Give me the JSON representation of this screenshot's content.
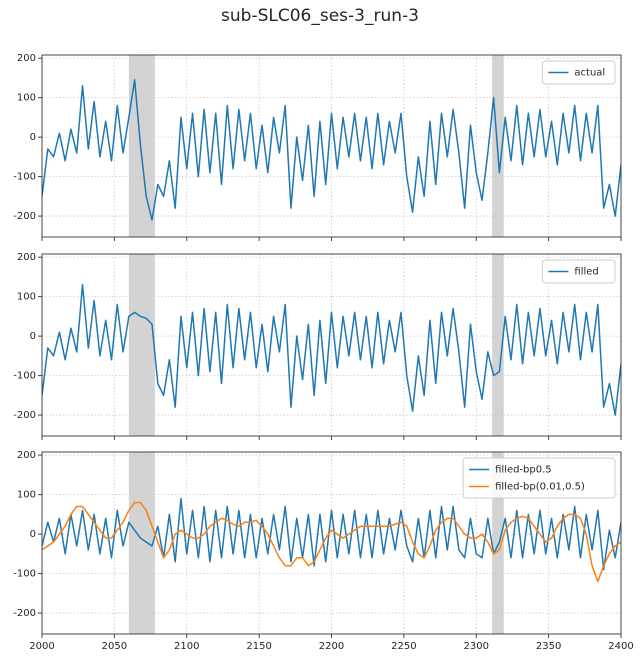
{
  "title": "sub-SLC06_ses-3_run-3",
  "chart_data": [
    {
      "type": "line",
      "x": [
        2000,
        2004,
        2008,
        2012,
        2016,
        2020,
        2024,
        2028,
        2032,
        2036,
        2040,
        2044,
        2048,
        2052,
        2056,
        2060,
        2064,
        2068,
        2072,
        2076,
        2080,
        2084,
        2088,
        2092,
        2096,
        2100,
        2104,
        2108,
        2112,
        2116,
        2120,
        2124,
        2128,
        2132,
        2136,
        2140,
        2144,
        2148,
        2152,
        2156,
        2160,
        2164,
        2168,
        2172,
        2176,
        2180,
        2184,
        2188,
        2192,
        2196,
        2200,
        2204,
        2208,
        2212,
        2216,
        2220,
        2224,
        2228,
        2232,
        2236,
        2240,
        2244,
        2248,
        2252,
        2256,
        2260,
        2264,
        2268,
        2272,
        2276,
        2280,
        2284,
        2288,
        2292,
        2296,
        2300,
        2304,
        2308,
        2312,
        2316,
        2320,
        2324,
        2328,
        2332,
        2336,
        2340,
        2344,
        2348,
        2352,
        2356,
        2360,
        2364,
        2368,
        2372,
        2376,
        2380,
        2384,
        2388,
        2392,
        2396,
        2400
      ],
      "series": [
        {
          "name": "actual",
          "color": "#1f77b4",
          "values": [
            -150,
            -30,
            -50,
            10,
            -60,
            20,
            -40,
            130,
            -30,
            90,
            -50,
            40,
            -60,
            80,
            -40,
            50,
            145,
            -20,
            -150,
            -210,
            -120,
            -150,
            -60,
            -180,
            50,
            -80,
            60,
            -100,
            70,
            -90,
            60,
            -120,
            80,
            -80,
            70,
            -60,
            60,
            -80,
            30,
            -90,
            50,
            -40,
            80,
            -180,
            0,
            -110,
            30,
            -150,
            40,
            -120,
            60,
            -80,
            50,
            -50,
            60,
            -60,
            50,
            -80,
            60,
            -70,
            40,
            -40,
            60,
            -100,
            -190,
            -50,
            -150,
            40,
            -120,
            60,
            -50,
            70,
            -40,
            -180,
            30,
            -90,
            -160,
            -40,
            100,
            -90,
            50,
            -60,
            80,
            -70,
            60,
            -50,
            70,
            -50,
            40,
            -70,
            60,
            -40,
            80,
            -60,
            60,
            -40,
            80,
            -180,
            -120,
            -200,
            -70
          ]
        }
      ],
      "shaded": [
        [
          2060,
          2078
        ],
        [
          2311,
          2319
        ]
      ],
      "shade_color": "#d3d3d3",
      "xlim": [
        2000,
        2400
      ],
      "xticks": [
        2000,
        2050,
        2100,
        2150,
        2200,
        2250,
        2300,
        2350,
        2400
      ],
      "ylim": [
        -253,
        208
      ],
      "yticks": [
        -200,
        -100,
        0,
        100,
        200
      ],
      "grid": true,
      "legend": "upper right"
    },
    {
      "type": "line",
      "x": [
        2000,
        2004,
        2008,
        2012,
        2016,
        2020,
        2024,
        2028,
        2032,
        2036,
        2040,
        2044,
        2048,
        2052,
        2056,
        2060,
        2064,
        2068,
        2072,
        2076,
        2080,
        2084,
        2088,
        2092,
        2096,
        2100,
        2104,
        2108,
        2112,
        2116,
        2120,
        2124,
        2128,
        2132,
        2136,
        2140,
        2144,
        2148,
        2152,
        2156,
        2160,
        2164,
        2168,
        2172,
        2176,
        2180,
        2184,
        2188,
        2192,
        2196,
        2200,
        2204,
        2208,
        2212,
        2216,
        2220,
        2224,
        2228,
        2232,
        2236,
        2240,
        2244,
        2248,
        2252,
        2256,
        2260,
        2264,
        2268,
        2272,
        2276,
        2280,
        2284,
        2288,
        2292,
        2296,
        2300,
        2304,
        2308,
        2312,
        2316,
        2320,
        2324,
        2328,
        2332,
        2336,
        2340,
        2344,
        2348,
        2352,
        2356,
        2360,
        2364,
        2368,
        2372,
        2376,
        2380,
        2384,
        2388,
        2392,
        2396,
        2400
      ],
      "series": [
        {
          "name": "filled",
          "color": "#1f77b4",
          "values": [
            -150,
            -30,
            -50,
            10,
            -60,
            20,
            -40,
            130,
            -30,
            90,
            -50,
            40,
            -60,
            80,
            -40,
            50,
            60,
            50,
            45,
            30,
            -120,
            -150,
            -60,
            -180,
            50,
            -80,
            60,
            -100,
            70,
            -90,
            60,
            -120,
            80,
            -80,
            70,
            -60,
            60,
            -80,
            30,
            -90,
            50,
            -40,
            80,
            -180,
            0,
            -110,
            30,
            -150,
            40,
            -120,
            60,
            -80,
            50,
            -50,
            60,
            -60,
            50,
            -80,
            60,
            -70,
            40,
            -40,
            60,
            -100,
            -190,
            -50,
            -150,
            40,
            -120,
            60,
            -50,
            70,
            -40,
            -180,
            30,
            -90,
            -160,
            -40,
            -100,
            -90,
            50,
            -60,
            80,
            -70,
            60,
            -50,
            70,
            -50,
            40,
            -70,
            60,
            -40,
            80,
            -60,
            60,
            -40,
            80,
            -180,
            -120,
            -200,
            -70
          ]
        }
      ],
      "shaded": [
        [
          2060,
          2078
        ],
        [
          2311,
          2319
        ]
      ],
      "shade_color": "#d3d3d3",
      "xlim": [
        2000,
        2400
      ],
      "xticks": [
        2000,
        2050,
        2100,
        2150,
        2200,
        2250,
        2300,
        2350,
        2400
      ],
      "ylim": [
        -253,
        208
      ],
      "yticks": [
        -200,
        -100,
        0,
        100,
        200
      ],
      "grid": true,
      "legend": "upper right"
    },
    {
      "type": "line",
      "x": [
        2000,
        2004,
        2008,
        2012,
        2016,
        2020,
        2024,
        2028,
        2032,
        2036,
        2040,
        2044,
        2048,
        2052,
        2056,
        2060,
        2064,
        2068,
        2072,
        2076,
        2080,
        2084,
        2088,
        2092,
        2096,
        2100,
        2104,
        2108,
        2112,
        2116,
        2120,
        2124,
        2128,
        2132,
        2136,
        2140,
        2144,
        2148,
        2152,
        2156,
        2160,
        2164,
        2168,
        2172,
        2176,
        2180,
        2184,
        2188,
        2192,
        2196,
        2200,
        2204,
        2208,
        2212,
        2216,
        2220,
        2224,
        2228,
        2232,
        2236,
        2240,
        2244,
        2248,
        2252,
        2256,
        2260,
        2264,
        2268,
        2272,
        2276,
        2280,
        2284,
        2288,
        2292,
        2296,
        2300,
        2304,
        2308,
        2312,
        2316,
        2320,
        2324,
        2328,
        2332,
        2336,
        2340,
        2344,
        2348,
        2352,
        2356,
        2360,
        2364,
        2368,
        2372,
        2376,
        2380,
        2384,
        2388,
        2392,
        2396,
        2400
      ],
      "series": [
        {
          "name": "filled-bp0.5",
          "color": "#1f77b4",
          "values": [
            -30,
            30,
            -20,
            40,
            -50,
            50,
            -30,
            60,
            -40,
            50,
            -50,
            40,
            -60,
            60,
            -30,
            30,
            10,
            -10,
            -20,
            -30,
            20,
            -60,
            50,
            -70,
            90,
            -50,
            60,
            -60,
            70,
            -70,
            60,
            -60,
            70,
            -50,
            60,
            -60,
            50,
            -60,
            40,
            -50,
            50,
            -40,
            70,
            -70,
            40,
            -60,
            50,
            -80,
            50,
            -70,
            60,
            -60,
            50,
            -50,
            60,
            -60,
            50,
            -60,
            60,
            -50,
            40,
            -40,
            60,
            -30,
            -70,
            40,
            -60,
            60,
            -60,
            70,
            -40,
            70,
            -40,
            -60,
            40,
            -50,
            -60,
            40,
            -50,
            -20,
            40,
            -60,
            60,
            -60,
            50,
            -50,
            60,
            -50,
            40,
            -60,
            50,
            -40,
            70,
            -60,
            50,
            -40,
            60,
            -90,
            10,
            -60,
            30
          ]
        },
        {
          "name": "filled-bp(0.01,0.5)",
          "color": "#ff7f0e",
          "values": [
            -40,
            -30,
            -20,
            0,
            20,
            50,
            70,
            70,
            50,
            30,
            10,
            -10,
            -10,
            10,
            30,
            60,
            80,
            80,
            60,
            20,
            -20,
            -60,
            -40,
            0,
            10,
            0,
            -10,
            -10,
            0,
            20,
            30,
            40,
            35,
            25,
            20,
            30,
            30,
            35,
            20,
            0,
            -30,
            -60,
            -80,
            -80,
            -60,
            -60,
            -80,
            -70,
            -40,
            -10,
            10,
            0,
            -10,
            0,
            10,
            20,
            20,
            20,
            20,
            20,
            20,
            25,
            30,
            20,
            -20,
            -50,
            -60,
            -30,
            10,
            30,
            40,
            40,
            20,
            0,
            -10,
            -10,
            0,
            -20,
            -50,
            -40,
            10,
            30,
            40,
            45,
            40,
            20,
            0,
            -20,
            -10,
            20,
            40,
            50,
            50,
            40,
            0,
            -80,
            -120,
            -80,
            -50,
            -30,
            -20
          ]
        }
      ],
      "shaded": [
        [
          2060,
          2078
        ],
        [
          2311,
          2319
        ]
      ],
      "shade_color": "#d3d3d3",
      "xlim": [
        2000,
        2400
      ],
      "xticks": [
        2000,
        2050,
        2100,
        2150,
        2200,
        2250,
        2300,
        2350,
        2400
      ],
      "ylim": [
        -253,
        208
      ],
      "yticks": [
        -200,
        -100,
        0,
        100,
        200
      ],
      "grid": true,
      "legend": "upper right"
    }
  ]
}
